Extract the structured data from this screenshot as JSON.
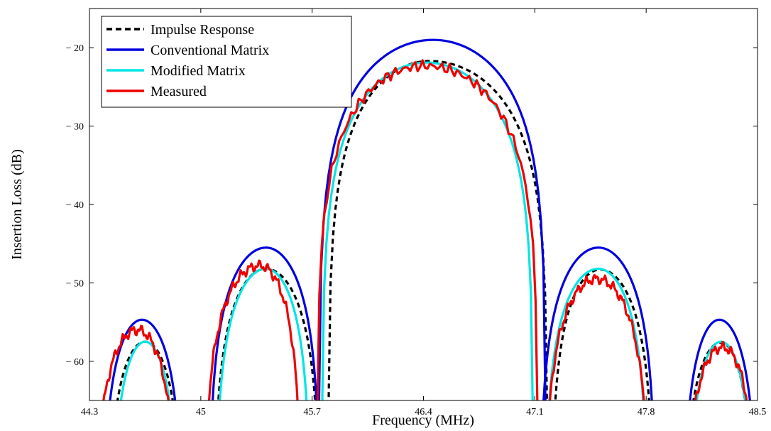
{
  "chart_data": {
    "type": "line",
    "title": "",
    "xlabel": "Frequency (MHz)",
    "ylabel": "Insertion Loss (dB)",
    "xlim": [
      44.3,
      48.5
    ],
    "ylim": [
      -65,
      -15
    ],
    "x_ticks": [
      44.3,
      45,
      45.7,
      46.4,
      47.1,
      47.8,
      48.5
    ],
    "x_tick_labels": [
      "44.3",
      "45",
      "45.7",
      "46.4",
      "47.1",
      "47.8",
      "48.5"
    ],
    "y_ticks": [
      -20,
      -30,
      -40,
      -50,
      -60
    ],
    "y_tick_labels": [
      "− 20",
      "− 30",
      "− 40",
      "− 50",
      "− 60"
    ],
    "grid": false,
    "legend_position": "top-left",
    "series": [
      {
        "name": "Impulse Response",
        "color": "#000000",
        "style": "dashed",
        "lobes": [
          {
            "start": 44.41,
            "end": 44.89,
            "peak_x": 44.65,
            "peak_y": -57.5
          },
          {
            "start": 45.08,
            "end": 45.75,
            "peak_x": 45.41,
            "peak_y": -48.2
          },
          {
            "start": 45.8,
            "end": 47.18,
            "peak_x": 46.44,
            "peak_y": -21.7
          },
          {
            "start": 47.2,
            "end": 47.85,
            "peak_x": 47.51,
            "peak_y": -48.3
          },
          {
            "start": 48.03,
            "end": 48.48,
            "peak_x": 48.27,
            "peak_y": -57.6
          }
        ]
      },
      {
        "name": "Conventional Matrix",
        "color": "#0000dd",
        "style": "solid",
        "lobes": [
          {
            "start": 44.38,
            "end": 44.89,
            "peak_x": 44.63,
            "peak_y": -54.7
          },
          {
            "start": 45.05,
            "end": 45.75,
            "peak_x": 45.41,
            "peak_y": -45.5
          },
          {
            "start": 45.74,
            "end": 47.17,
            "peak_x": 46.46,
            "peak_y": -19.0
          },
          {
            "start": 47.13,
            "end": 47.86,
            "peak_x": 47.5,
            "peak_y": -45.5
          },
          {
            "start": 48.03,
            "end": 48.5,
            "peak_x": 48.26,
            "peak_y": -54.7
          }
        ]
      },
      {
        "name": "Modified Matrix",
        "color": "#00e5e5",
        "style": "solid",
        "lobes": [
          {
            "start": 44.44,
            "end": 44.86,
            "peak_x": 44.65,
            "peak_y": -57.5
          },
          {
            "start": 45.09,
            "end": 45.69,
            "peak_x": 45.41,
            "peak_y": -48.2
          },
          {
            "start": 45.76,
            "end": 47.09,
            "peak_x": 46.42,
            "peak_y": -21.9
          },
          {
            "start": 47.16,
            "end": 47.81,
            "peak_x": 47.5,
            "peak_y": -48.2
          },
          {
            "start": 48.06,
            "end": 48.48,
            "peak_x": 48.27,
            "peak_y": -57.5
          }
        ]
      },
      {
        "name": "Measured",
        "color": "#ee0000",
        "style": "solid",
        "lobes": [
          {
            "start": 44.33,
            "end": 44.85,
            "peak_x": 44.6,
            "peak_y": -56.0
          },
          {
            "start": 45.02,
            "end": 45.63,
            "peak_x": 45.37,
            "peak_y": -47.8
          },
          {
            "start": 45.73,
            "end": 47.12,
            "peak_x": 46.41,
            "peak_y": -22.3
          },
          {
            "start": 47.16,
            "end": 47.82,
            "peak_x": 47.49,
            "peak_y": -49.5
          },
          {
            "start": 48.04,
            "end": 48.5,
            "peak_x": 48.28,
            "peak_y": -58.2
          }
        ]
      }
    ]
  }
}
